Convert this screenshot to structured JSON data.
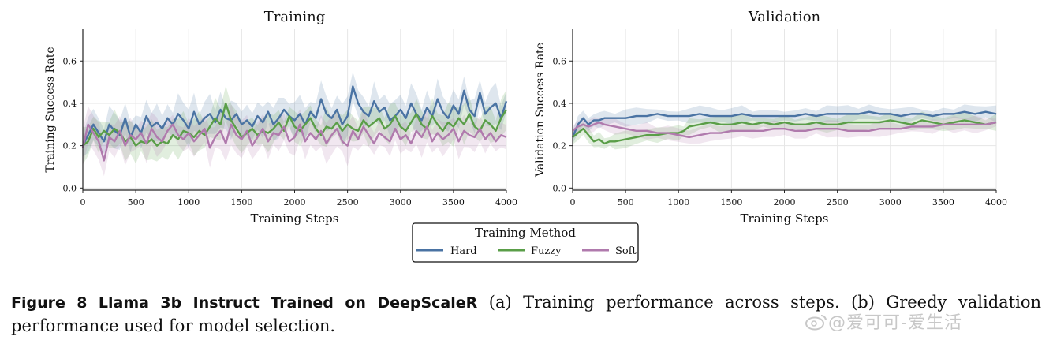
{
  "chart_data": [
    {
      "type": "line",
      "title": "Training",
      "xlabel": "Training Steps",
      "ylabel": "Training Success Rate",
      "xlim": [
        0,
        4000
      ],
      "ylim": [
        -0.01,
        0.75
      ],
      "xticks": [
        0,
        500,
        1000,
        1500,
        2000,
        2500,
        3000,
        3500,
        4000
      ],
      "yticks": [
        0.0,
        0.2,
        0.4,
        0.6
      ],
      "grid": true,
      "shaded_band": true,
      "series": [
        {
          "name": "Hard",
          "color": "#4a73a3",
          "x": [
            0,
            50,
            100,
            150,
            200,
            250,
            300,
            350,
            400,
            450,
            500,
            550,
            600,
            650,
            700,
            750,
            800,
            850,
            900,
            950,
            1000,
            1050,
            1100,
            1150,
            1200,
            1250,
            1300,
            1350,
            1400,
            1450,
            1500,
            1550,
            1600,
            1650,
            1700,
            1750,
            1800,
            1850,
            1900,
            1950,
            2000,
            2050,
            2100,
            2150,
            2200,
            2250,
            2300,
            2350,
            2400,
            2450,
            2500,
            2550,
            2600,
            2650,
            2700,
            2750,
            2800,
            2850,
            2900,
            2950,
            3000,
            3050,
            3100,
            3150,
            3200,
            3250,
            3300,
            3350,
            3400,
            3450,
            3500,
            3550,
            3600,
            3650,
            3700,
            3750,
            3800,
            3850,
            3900,
            3950,
            4000
          ],
          "y": [
            0.2,
            0.25,
            0.3,
            0.26,
            0.22,
            0.3,
            0.27,
            0.25,
            0.33,
            0.24,
            0.3,
            0.26,
            0.34,
            0.29,
            0.31,
            0.28,
            0.33,
            0.3,
            0.35,
            0.32,
            0.28,
            0.36,
            0.3,
            0.33,
            0.35,
            0.31,
            0.37,
            0.33,
            0.32,
            0.35,
            0.3,
            0.32,
            0.29,
            0.34,
            0.31,
            0.36,
            0.3,
            0.33,
            0.37,
            0.34,
            0.32,
            0.35,
            0.3,
            0.36,
            0.33,
            0.42,
            0.35,
            0.33,
            0.37,
            0.3,
            0.34,
            0.48,
            0.4,
            0.36,
            0.34,
            0.41,
            0.36,
            0.38,
            0.32,
            0.34,
            0.37,
            0.33,
            0.4,
            0.35,
            0.32,
            0.38,
            0.34,
            0.42,
            0.36,
            0.33,
            0.39,
            0.35,
            0.46,
            0.37,
            0.34,
            0.45,
            0.35,
            0.38,
            0.4,
            0.33,
            0.41
          ]
        },
        {
          "name": "Fuzzy",
          "color": "#5a9e48",
          "x": [
            0,
            50,
            100,
            150,
            200,
            250,
            300,
            350,
            400,
            450,
            500,
            550,
            600,
            650,
            700,
            750,
            800,
            850,
            900,
            950,
            1000,
            1050,
            1100,
            1150,
            1200,
            1250,
            1300,
            1350,
            1400,
            1450,
            1500,
            1550,
            1600,
            1650,
            1700,
            1750,
            1800,
            1850,
            1900,
            1950,
            2000,
            2050,
            2100,
            2150,
            2200,
            2250,
            2300,
            2350,
            2400,
            2450,
            2500,
            2550,
            2600,
            2650,
            2700,
            2750,
            2800,
            2850,
            2900,
            2950,
            3000,
            3050,
            3100,
            3150,
            3200,
            3250,
            3300,
            3350,
            3400,
            3450,
            3500,
            3550,
            3600,
            3650,
            3700,
            3750,
            3800,
            3850,
            3900,
            3950,
            4000
          ],
          "y": [
            0.2,
            0.22,
            0.28,
            0.24,
            0.27,
            0.25,
            0.28,
            0.26,
            0.22,
            0.24,
            0.2,
            0.22,
            0.21,
            0.23,
            0.2,
            0.22,
            0.21,
            0.25,
            0.23,
            0.27,
            0.26,
            0.24,
            0.27,
            0.25,
            0.29,
            0.33,
            0.3,
            0.4,
            0.32,
            0.28,
            0.24,
            0.26,
            0.28,
            0.25,
            0.27,
            0.26,
            0.28,
            0.31,
            0.27,
            0.34,
            0.29,
            0.27,
            0.3,
            0.33,
            0.28,
            0.25,
            0.29,
            0.28,
            0.31,
            0.27,
            0.3,
            0.28,
            0.27,
            0.32,
            0.29,
            0.31,
            0.33,
            0.28,
            0.3,
            0.34,
            0.29,
            0.27,
            0.31,
            0.35,
            0.3,
            0.28,
            0.34,
            0.3,
            0.27,
            0.31,
            0.29,
            0.33,
            0.3,
            0.35,
            0.29,
            0.27,
            0.32,
            0.3,
            0.27,
            0.33,
            0.37
          ]
        },
        {
          "name": "Soft",
          "color": "#b07aad",
          "x": [
            0,
            50,
            100,
            150,
            200,
            250,
            300,
            350,
            400,
            450,
            500,
            550,
            600,
            650,
            700,
            750,
            800,
            850,
            900,
            950,
            1000,
            1050,
            1100,
            1150,
            1200,
            1250,
            1300,
            1350,
            1400,
            1450,
            1500,
            1550,
            1600,
            1650,
            1700,
            1750,
            1800,
            1850,
            1900,
            1950,
            2000,
            2050,
            2100,
            2150,
            2200,
            2250,
            2300,
            2350,
            2400,
            2450,
            2500,
            2550,
            2600,
            2650,
            2700,
            2750,
            2800,
            2850,
            2900,
            2950,
            3000,
            3050,
            3100,
            3150,
            3200,
            3250,
            3300,
            3350,
            3400,
            3450,
            3500,
            3550,
            3600,
            3650,
            3700,
            3750,
            3800,
            3850,
            3900,
            3950,
            4000
          ],
          "y": [
            0.19,
            0.3,
            0.26,
            0.22,
            0.13,
            0.24,
            0.22,
            0.27,
            0.2,
            0.25,
            0.23,
            0.26,
            0.21,
            0.28,
            0.24,
            0.22,
            0.27,
            0.3,
            0.25,
            0.23,
            0.26,
            0.22,
            0.25,
            0.28,
            0.19,
            0.24,
            0.27,
            0.21,
            0.3,
            0.25,
            0.23,
            0.27,
            0.2,
            0.24,
            0.28,
            0.22,
            0.26,
            0.25,
            0.29,
            0.22,
            0.24,
            0.3,
            0.22,
            0.26,
            0.23,
            0.27,
            0.21,
            0.25,
            0.28,
            0.22,
            0.2,
            0.27,
            0.23,
            0.29,
            0.25,
            0.21,
            0.26,
            0.24,
            0.22,
            0.28,
            0.23,
            0.25,
            0.21,
            0.27,
            0.24,
            0.29,
            0.22,
            0.26,
            0.23,
            0.25,
            0.28,
            0.22,
            0.27,
            0.25,
            0.24,
            0.28,
            0.23,
            0.26,
            0.22,
            0.25,
            0.24
          ]
        }
      ]
    },
    {
      "type": "line",
      "title": "Validation",
      "xlabel": "Training Steps",
      "ylabel": "Validation Success Rate",
      "xlim": [
        0,
        4000
      ],
      "ylim": [
        -0.01,
        0.75
      ],
      "xticks": [
        0,
        500,
        1000,
        1500,
        2000,
        2500,
        3000,
        3500,
        4000
      ],
      "yticks": [
        0.0,
        0.2,
        0.4,
        0.6
      ],
      "grid": true,
      "shaded_band": true,
      "series": [
        {
          "name": "Hard",
          "color": "#4a73a3",
          "x": [
            0,
            50,
            100,
            150,
            200,
            250,
            300,
            400,
            500,
            600,
            700,
            800,
            900,
            1000,
            1100,
            1200,
            1300,
            1400,
            1500,
            1600,
            1700,
            1800,
            1900,
            2000,
            2100,
            2200,
            2300,
            2400,
            2500,
            2600,
            2700,
            2800,
            2900,
            3000,
            3100,
            3200,
            3300,
            3400,
            3500,
            3600,
            3700,
            3800,
            3900,
            4000
          ],
          "y": [
            0.24,
            0.3,
            0.33,
            0.3,
            0.32,
            0.32,
            0.33,
            0.33,
            0.33,
            0.34,
            0.34,
            0.35,
            0.34,
            0.34,
            0.34,
            0.35,
            0.34,
            0.34,
            0.34,
            0.35,
            0.34,
            0.34,
            0.34,
            0.34,
            0.34,
            0.35,
            0.34,
            0.35,
            0.35,
            0.35,
            0.35,
            0.36,
            0.35,
            0.35,
            0.34,
            0.35,
            0.35,
            0.34,
            0.35,
            0.35,
            0.36,
            0.35,
            0.36,
            0.35
          ]
        },
        {
          "name": "Fuzzy",
          "color": "#5a9e48",
          "x": [
            0,
            50,
            100,
            150,
            200,
            250,
            300,
            350,
            400,
            500,
            600,
            700,
            800,
            900,
            1000,
            1050,
            1100,
            1200,
            1300,
            1400,
            1500,
            1600,
            1700,
            1800,
            1900,
            2000,
            2100,
            2200,
            2300,
            2400,
            2500,
            2600,
            2700,
            2800,
            2900,
            3000,
            3100,
            3200,
            3300,
            3400,
            3500,
            3600,
            3700,
            3800,
            3900,
            4000
          ],
          "y": [
            0.24,
            0.26,
            0.28,
            0.25,
            0.22,
            0.23,
            0.21,
            0.22,
            0.22,
            0.23,
            0.24,
            0.25,
            0.25,
            0.26,
            0.26,
            0.27,
            0.29,
            0.3,
            0.31,
            0.3,
            0.3,
            0.31,
            0.3,
            0.31,
            0.3,
            0.31,
            0.3,
            0.3,
            0.31,
            0.3,
            0.3,
            0.31,
            0.31,
            0.31,
            0.31,
            0.32,
            0.31,
            0.3,
            0.32,
            0.31,
            0.3,
            0.31,
            0.32,
            0.31,
            0.3,
            0.31
          ]
        },
        {
          "name": "Soft",
          "color": "#b07aad",
          "x": [
            0,
            50,
            100,
            150,
            200,
            250,
            300,
            400,
            500,
            600,
            700,
            800,
            900,
            1000,
            1100,
            1200,
            1300,
            1400,
            1500,
            1600,
            1700,
            1800,
            1900,
            2000,
            2100,
            2200,
            2300,
            2400,
            2500,
            2600,
            2700,
            2800,
            2900,
            3000,
            3100,
            3200,
            3300,
            3400,
            3500,
            3600,
            3700,
            3800,
            3900,
            4000
          ],
          "y": [
            0.27,
            0.29,
            0.3,
            0.29,
            0.3,
            0.31,
            0.3,
            0.29,
            0.28,
            0.27,
            0.27,
            0.26,
            0.26,
            0.25,
            0.24,
            0.25,
            0.26,
            0.26,
            0.27,
            0.27,
            0.27,
            0.27,
            0.28,
            0.28,
            0.27,
            0.27,
            0.28,
            0.28,
            0.28,
            0.27,
            0.27,
            0.27,
            0.28,
            0.28,
            0.28,
            0.29,
            0.29,
            0.29,
            0.3,
            0.3,
            0.3,
            0.3,
            0.3,
            0.31
          ]
        }
      ]
    }
  ],
  "legend": {
    "title": "Training Method",
    "placement": "bottom-center",
    "items": [
      "Hard",
      "Fuzzy",
      "Soft"
    ]
  },
  "caption": {
    "label": "Figure 8   Llama 3b Instruct Trained on DeepScaleR",
    "text": " (a) Training performance across steps.  (b) Greedy validation performance used for model selection."
  },
  "watermark": {
    "text": "@爱可可-爱生活",
    "icon": "weibo-icon"
  }
}
